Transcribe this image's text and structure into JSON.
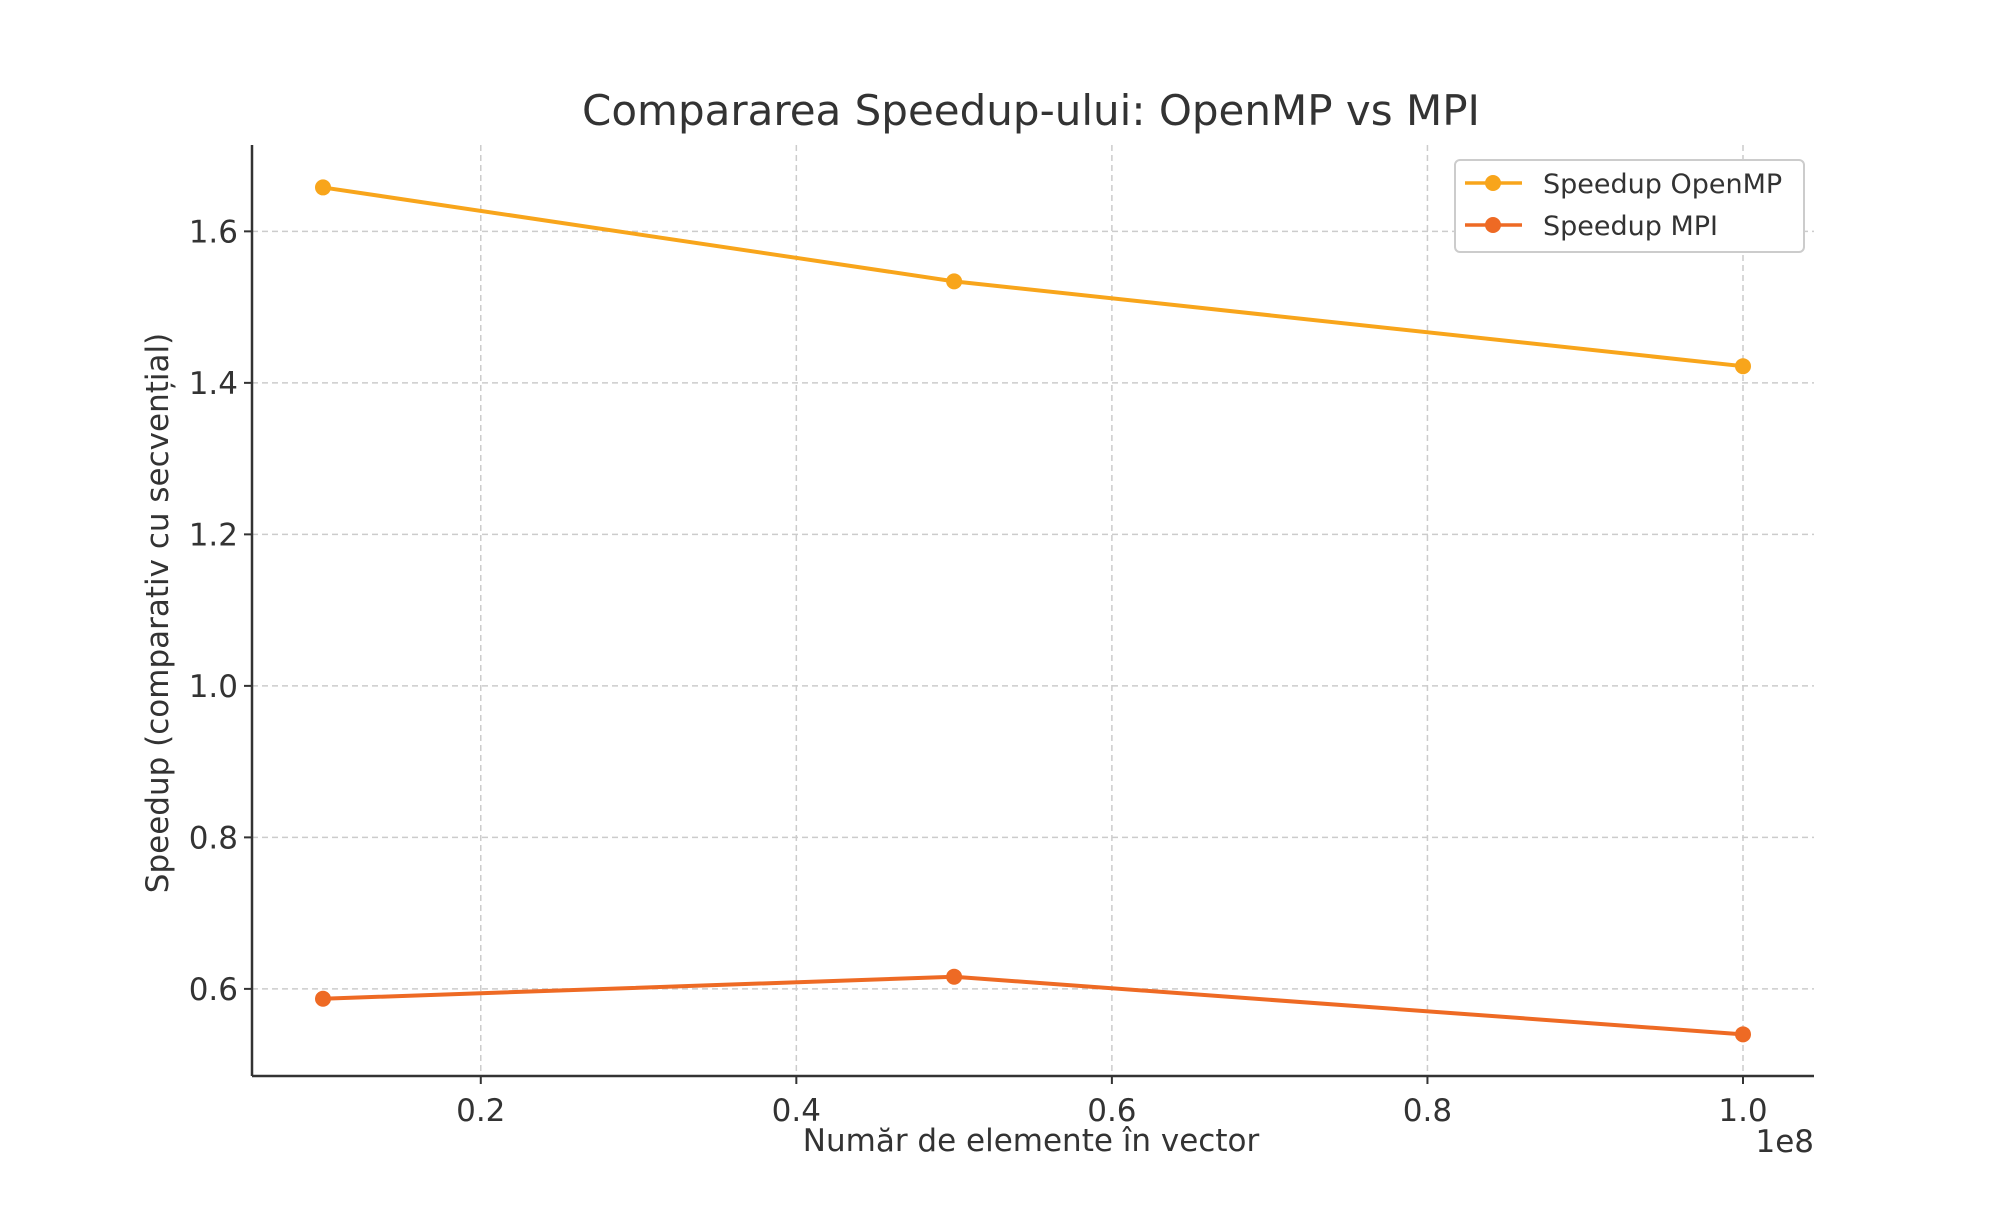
{
  "chart_data": {
    "type": "line",
    "title": "Compararea Speedup-ului: OpenMP vs MPI",
    "xlabel": "Număr de elemente în vector",
    "ylabel": "Speedup (comparativ cu secvențial)",
    "x_offset_text": "1e8",
    "x": [
      10000000,
      50000000,
      100000000
    ],
    "xlim": [
      5500000,
      104500000
    ],
    "ylim": [
      0.485,
      1.714
    ],
    "x_ticks": [
      20000000,
      40000000,
      60000000,
      80000000,
      100000000
    ],
    "x_tick_labels": [
      "0.2",
      "0.4",
      "0.6",
      "0.8",
      "1.0"
    ],
    "y_ticks": [
      0.6,
      0.8,
      1.0,
      1.2,
      1.4,
      1.6
    ],
    "y_tick_labels": [
      "0.6",
      "0.8",
      "1.0",
      "1.2",
      "1.4",
      "1.6"
    ],
    "grid": true,
    "legend_position": "top-right",
    "series": [
      {
        "name": "Speedup OpenMP",
        "values": [
          1.658,
          1.534,
          1.422
        ],
        "color": "#F8A51B"
      },
      {
        "name": "Speedup MPI",
        "values": [
          0.587,
          0.616,
          0.54
        ],
        "color": "#EE6A24"
      }
    ]
  }
}
